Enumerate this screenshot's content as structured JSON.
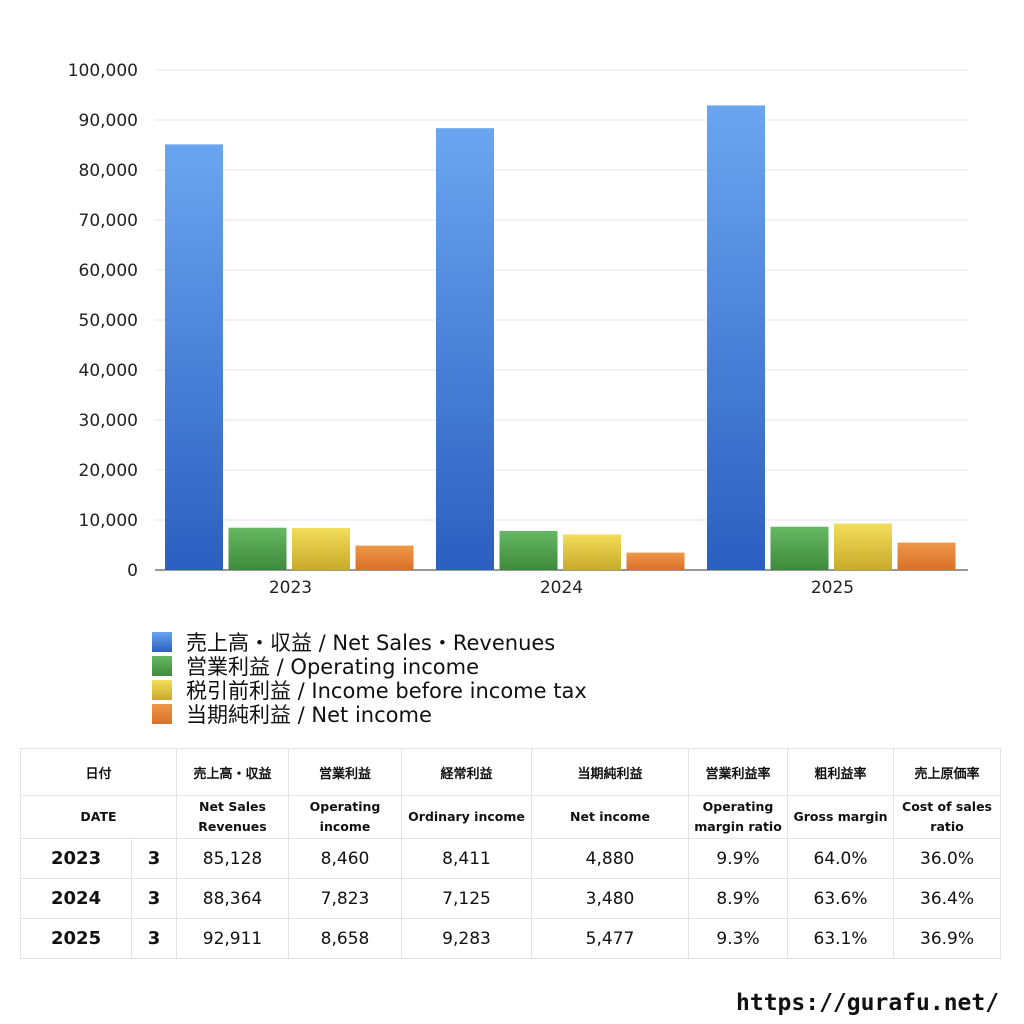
{
  "chart_data": {
    "type": "bar",
    "categories": [
      "2023",
      "2024",
      "2025"
    ],
    "series": [
      {
        "name": "売上高・収益 / Net Sales・Revenues",
        "values": [
          85128,
          88364,
          92911
        ],
        "color_top": "#6aa6f0",
        "color_bottom": "#2b5fc0"
      },
      {
        "name": "営業利益 / Operating income",
        "values": [
          8460,
          7823,
          8658
        ],
        "color_top": "#66b862",
        "color_bottom": "#3e8a3c"
      },
      {
        "name": "税引前利益 / Income before income tax",
        "values": [
          8411,
          7125,
          9283
        ],
        "color_top": "#f2de5a",
        "color_bottom": "#c9aa2a"
      },
      {
        "name": "当期純利益 / Net income",
        "values": [
          4880,
          3480,
          5477
        ],
        "color_top": "#ef9848",
        "color_bottom": "#d8702a"
      }
    ],
    "ylim": [
      0,
      100000
    ],
    "yticks": [
      "0",
      "10,000",
      "20,000",
      "30,000",
      "40,000",
      "50,000",
      "60,000",
      "70,000",
      "80,000",
      "90,000",
      "100,000"
    ],
    "grid": true,
    "legend_position": "bottom-left"
  },
  "table": {
    "header_jp": [
      "日付",
      "",
      "売上高・収益",
      "営業利益",
      "経常利益",
      "当期純利益",
      "営業利益率",
      "粗利益率",
      "売上原価率"
    ],
    "header_en": [
      "DATE",
      "",
      "Net Sales Revenues",
      "Operating income",
      "Ordinary income",
      "Net income",
      "Operating margin ratio",
      "Gross margin",
      "Cost of sales ratio"
    ],
    "rows": [
      {
        "year": "2023",
        "month": "3",
        "cells": [
          "85,128",
          "8,460",
          "8,411",
          "4,880",
          "9.9%",
          "64.0%",
          "36.0%"
        ]
      },
      {
        "year": "2024",
        "month": "3",
        "cells": [
          "88,364",
          "7,823",
          "7,125",
          "3,480",
          "8.9%",
          "63.6%",
          "36.4%"
        ]
      },
      {
        "year": "2025",
        "month": "3",
        "cells": [
          "92,911",
          "8,658",
          "9,283",
          "5,477",
          "9.3%",
          "63.1%",
          "36.9%"
        ]
      }
    ]
  },
  "site_url": "https://gurafu.net/"
}
